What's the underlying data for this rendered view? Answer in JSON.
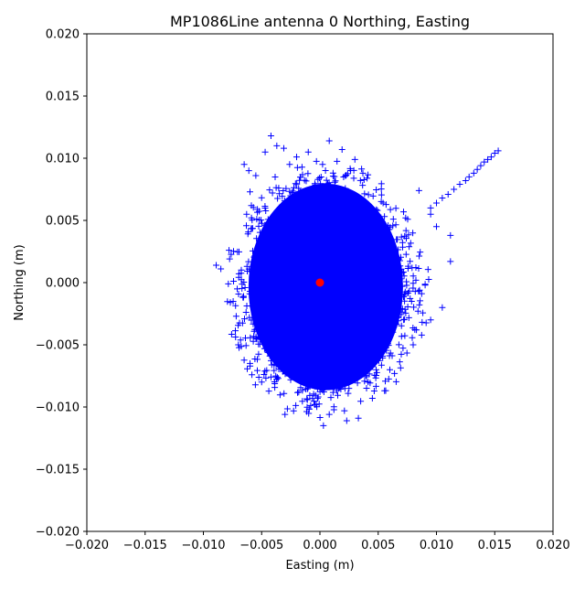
{
  "chart_data": {
    "type": "scatter",
    "title": "MP1086Line antenna 0 Northing, Easting",
    "xlabel": "Easting (m)",
    "ylabel": "Northing (m)",
    "xlim": [
      -0.02,
      0.02
    ],
    "ylim": [
      -0.02,
      0.02
    ],
    "xticks": [
      "−0.020",
      "−0.015",
      "−0.010",
      "−0.005",
      "0.000",
      "0.005",
      "0.010",
      "0.015",
      "0.020"
    ],
    "yticks": [
      "−0.020",
      "−0.015",
      "−0.010",
      "−0.005",
      "0.000",
      "0.005",
      "0.010",
      "0.015",
      "0.020"
    ],
    "xtick_values": [
      -0.02,
      -0.015,
      -0.01,
      -0.005,
      0.0,
      0.005,
      0.01,
      0.015,
      0.02
    ],
    "ytick_values": [
      -0.02,
      -0.015,
      -0.01,
      -0.005,
      0.0,
      0.005,
      0.01,
      0.015,
      0.02
    ],
    "grid": false,
    "series": [
      {
        "marker": "plus",
        "color": "#0000ff",
        "cluster": {
          "center": [
            0.0005,
            -0.0005
          ],
          "x_range": [
            -0.0075,
            0.0095
          ],
          "y_range": [
            -0.0105,
            0.0095
          ]
        },
        "outliers": [
          [
            -0.0089,
            0.0014
          ],
          [
            -0.0085,
            0.0011
          ],
          [
            -0.0078,
            0.0026
          ],
          [
            -0.0065,
            0.0095
          ],
          [
            -0.0061,
            0.009
          ],
          [
            -0.0055,
            0.0086
          ],
          [
            -0.0047,
            0.0105
          ],
          [
            -0.0042,
            0.0118
          ],
          [
            -0.0037,
            0.011
          ],
          [
            -0.0031,
            0.0108
          ],
          [
            -0.0026,
            0.0095
          ],
          [
            -0.002,
            0.0101
          ],
          [
            -0.001,
            0.0105
          ],
          [
            0.0008,
            0.0114
          ],
          [
            0.0019,
            0.0107
          ],
          [
            0.003,
            0.0099
          ],
          [
            -0.006,
            0.0073
          ],
          [
            -0.007,
            -0.005
          ],
          [
            -0.006,
            -0.0065
          ],
          [
            -0.005,
            -0.008
          ],
          [
            -0.003,
            -0.0106
          ],
          [
            0.0003,
            -0.0115
          ],
          [
            0.0023,
            -0.0111
          ],
          [
            0.0033,
            -0.0109
          ],
          [
            0.0045,
            -0.0093
          ],
          [
            0.006,
            -0.007
          ],
          [
            0.008,
            -0.005
          ],
          [
            0.0095,
            -0.003
          ],
          [
            0.0105,
            -0.002
          ],
          [
            0.0112,
            0.0017
          ],
          [
            0.0112,
            0.0038
          ],
          [
            0.0085,
            0.0074
          ],
          [
            0.01,
            0.0045
          ],
          [
            0.0095,
            0.0055
          ]
        ],
        "tail": [
          [
            0.0095,
            0.006
          ],
          [
            0.01,
            0.0064
          ],
          [
            0.0105,
            0.0068
          ],
          [
            0.011,
            0.0071
          ],
          [
            0.0115,
            0.0075
          ],
          [
            0.012,
            0.0079
          ],
          [
            0.0125,
            0.0082
          ],
          [
            0.0128,
            0.0085
          ],
          [
            0.0132,
            0.0088
          ],
          [
            0.0135,
            0.0091
          ],
          [
            0.0138,
            0.0094
          ],
          [
            0.0141,
            0.0097
          ],
          [
            0.0144,
            0.0099
          ],
          [
            0.0147,
            0.0101
          ],
          [
            0.015,
            0.0104
          ],
          [
            0.0153,
            0.0106
          ]
        ]
      },
      {
        "marker": "circle",
        "color": "#ff0000",
        "points": [
          [
            0.0,
            0.0
          ]
        ]
      }
    ]
  }
}
